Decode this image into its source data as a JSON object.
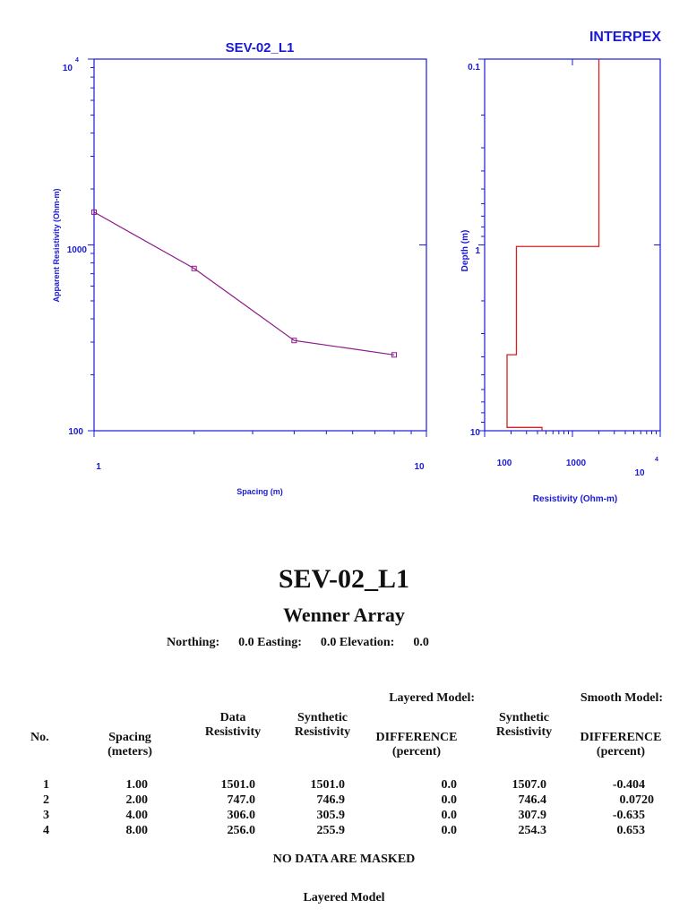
{
  "brand": "INTERPEX",
  "curve_chart": {
    "type": "line",
    "title": "SEV-02_L1",
    "xlabel": "Spacing (m)",
    "ylabel": "Apparent Resistivity (Ohm-m)",
    "x_scale": "log",
    "y_scale": "log",
    "xlim": [
      1,
      10
    ],
    "ylim": [
      100,
      10000
    ],
    "x_tick_labels": [
      "1",
      "10"
    ],
    "y_tick_labels": [
      "100",
      "1000",
      "10"
    ],
    "y_tick_exponent": "4",
    "series": [
      {
        "x": [
          1.0,
          2.0,
          4.0,
          8.0
        ],
        "y": [
          1501.0,
          747.0,
          306.0,
          256.0
        ],
        "color": "#8b1a8b",
        "marker": "square"
      }
    ]
  },
  "model_chart": {
    "type": "line",
    "xlabel": "Resistivity (Ohm-m)",
    "ylabel": "Depth (m)",
    "x_scale": "log",
    "y_scale": "log",
    "xlim": [
      100,
      10000
    ],
    "ylim": [
      0.1,
      10
    ],
    "y_inverted": true,
    "x_tick_labels": [
      "100",
      "1000",
      "10"
    ],
    "x_tick_exponent": "4",
    "y_tick_labels": [
      "0.1",
      "1",
      "10"
    ],
    "series": [
      {
        "resistivity": [
          2000,
          2000,
          230,
          230,
          180,
          180,
          450,
          450
        ],
        "depth": [
          0.1,
          1.02,
          1.02,
          3.9,
          3.9,
          9.6,
          9.6,
          10
        ],
        "color": "#d42020"
      }
    ]
  },
  "report": {
    "title": "SEV-02_L1",
    "subtitle": "Wenner Array",
    "coords": "Northing:      0.0 Easting:      0.0 Elevation:      0.0",
    "headers": {
      "layered_model": "Layered Model:",
      "smooth_model": "Smooth Model:",
      "no": "No.",
      "spacing": "Spacing",
      "spacing_units": "(meters)",
      "data": "Data",
      "data_resistivity": "Resistivity",
      "synthetic_l": "Synthetic",
      "synthetic_resistivity_l": "Resistivity",
      "difference_l": "DIFFERENCE",
      "percent_l": "(percent)",
      "synthetic_s": "Synthetic",
      "synthetic_resistivity_s": "Resistivity",
      "difference_s": "DIFFERENCE",
      "percent_s": "(percent)"
    },
    "rows": [
      {
        "no": "1",
        "spacing": "1.00",
        "data": "1501.0",
        "syn_l": "1501.0",
        "diff_l": "0.0",
        "syn_s": "1507.0",
        "diff_s": "-0.404"
      },
      {
        "no": "2",
        "spacing": "2.00",
        "data": "747.0",
        "syn_l": "746.9",
        "diff_l": "0.0",
        "syn_s": "746.4",
        "diff_s": "0.0720"
      },
      {
        "no": "3",
        "spacing": "4.00",
        "data": "306.0",
        "syn_l": "305.9",
        "diff_l": "0.0",
        "syn_s": "307.9",
        "diff_s": "-0.635"
      },
      {
        "no": "4",
        "spacing": "8.00",
        "data": "256.0",
        "syn_l": "255.9",
        "diff_l": "0.0",
        "syn_s": "254.3",
        "diff_s": "0.653"
      }
    ],
    "mask_note": "NO DATA ARE MASKED",
    "layered_title": "Layered Model"
  }
}
